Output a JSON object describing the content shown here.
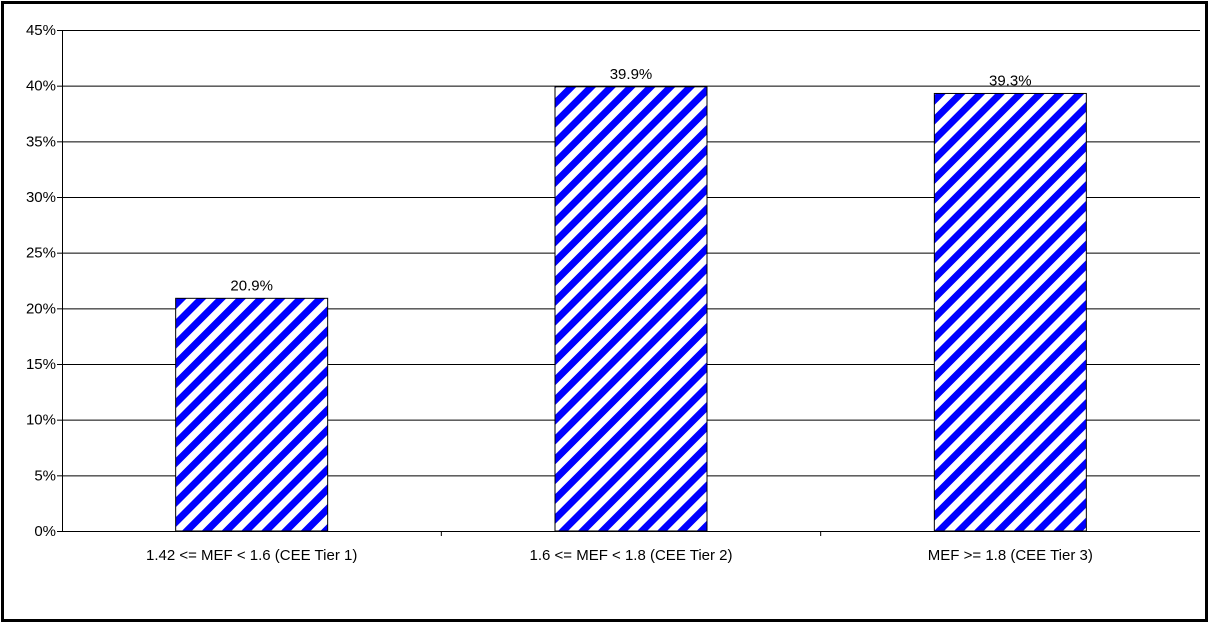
{
  "chart_data": {
    "type": "bar",
    "title": "",
    "xlabel": "",
    "ylabel": "",
    "categories": [
      "1.42 <= MEF < 1.6 (CEE Tier 1)",
      "1.6 <= MEF < 1.8 (CEE Tier 2)",
      "MEF >= 1.8 (CEE Tier 3)"
    ],
    "values": [
      20.9,
      39.9,
      39.3
    ],
    "data_labels": [
      "20.9%",
      "39.9%",
      "39.3%"
    ],
    "ylim": [
      0,
      45
    ],
    "yticks": [
      0,
      5,
      10,
      15,
      20,
      25,
      30,
      35,
      40,
      45
    ],
    "ytick_labels": [
      "0%",
      "5%",
      "10%",
      "15%",
      "20%",
      "25%",
      "30%",
      "35%",
      "40%",
      "45%"
    ],
    "grid": true,
    "legend": "none",
    "colors": {
      "bar_stripe": "#0000ff",
      "bar_background": "#ffffff",
      "gridline": "#000000",
      "border": "#000000"
    }
  }
}
